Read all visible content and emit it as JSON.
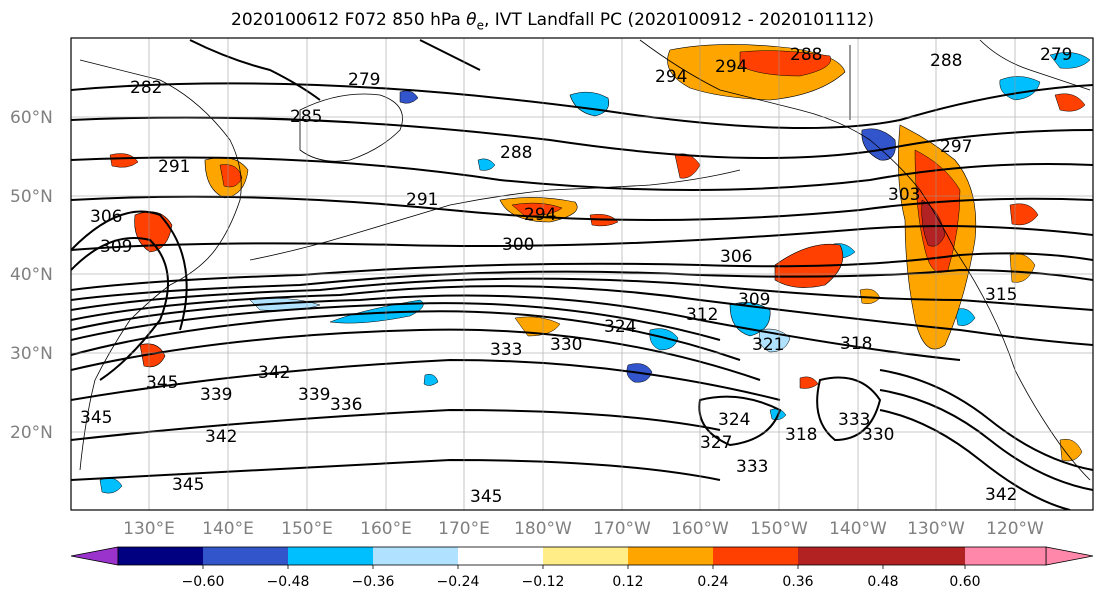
{
  "title_prefix": "2020100612 F072 850 hPa ",
  "title_theta": "θ",
  "title_sub": "e",
  "title_suffix": ", IVT Landfall PC (2020100912 - 2020101112)",
  "lat_labels": [
    "60°N",
    "50°N",
    "40°N",
    "30°N",
    "20°N"
  ],
  "lon_labels": [
    "130°E",
    "140°E",
    "150°E",
    "160°E",
    "170°E",
    "180°W",
    "170°W",
    "160°W",
    "150°W",
    "140°W",
    "130°W",
    "120°W"
  ],
  "contour_labels": [
    "282",
    "279",
    "285",
    "288",
    "294",
    "291",
    "291",
    "294",
    "300",
    "306",
    "303",
    "309",
    "312",
    "315",
    "318",
    "321",
    "324",
    "330",
    "333",
    "342",
    "339",
    "336",
    "339",
    "342",
    "345",
    "345",
    "345",
    "324",
    "327",
    "318",
    "333",
    "330",
    "333",
    "345",
    "342",
    "306",
    "309",
    "297",
    "288",
    "279",
    "294",
    "288"
  ],
  "colorbar": {
    "colors": [
      "#9933cc",
      "#000080",
      "#3355cc",
      "#00bfff",
      "#b0e2ff",
      "#ffffff",
      "#ffee88",
      "#ffa500",
      "#ff4000",
      "#b22222",
      "#ff88aa"
    ],
    "tick_labels": [
      "−0.60",
      "−0.48",
      "−0.36",
      "−0.24",
      "−0.12",
      "0.12",
      "0.24",
      "0.36",
      "0.48",
      "0.60"
    ]
  }
}
